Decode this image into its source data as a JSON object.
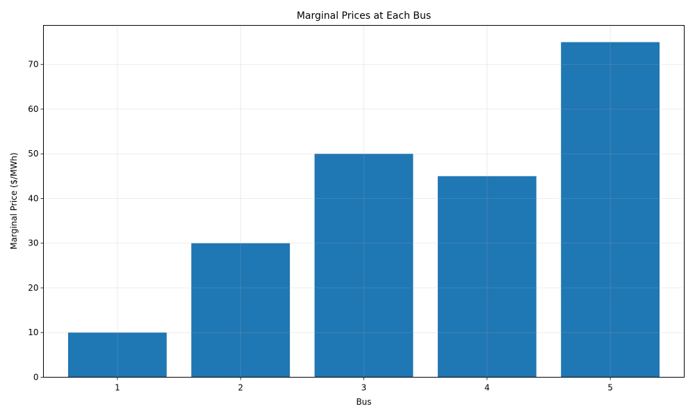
{
  "chart_data": {
    "type": "bar",
    "title": "Marginal Prices at Each Bus",
    "xlabel": "Bus",
    "ylabel": "Marginal Price ($/MWh)",
    "categories": [
      "1",
      "2",
      "3",
      "4",
      "5"
    ],
    "values": [
      10,
      30,
      50,
      45,
      75
    ],
    "ylim": [
      0,
      78.75
    ],
    "yticks": [
      0,
      10,
      20,
      30,
      40,
      50,
      60,
      70
    ],
    "grid": true,
    "bar_color": "#1f77b4"
  }
}
